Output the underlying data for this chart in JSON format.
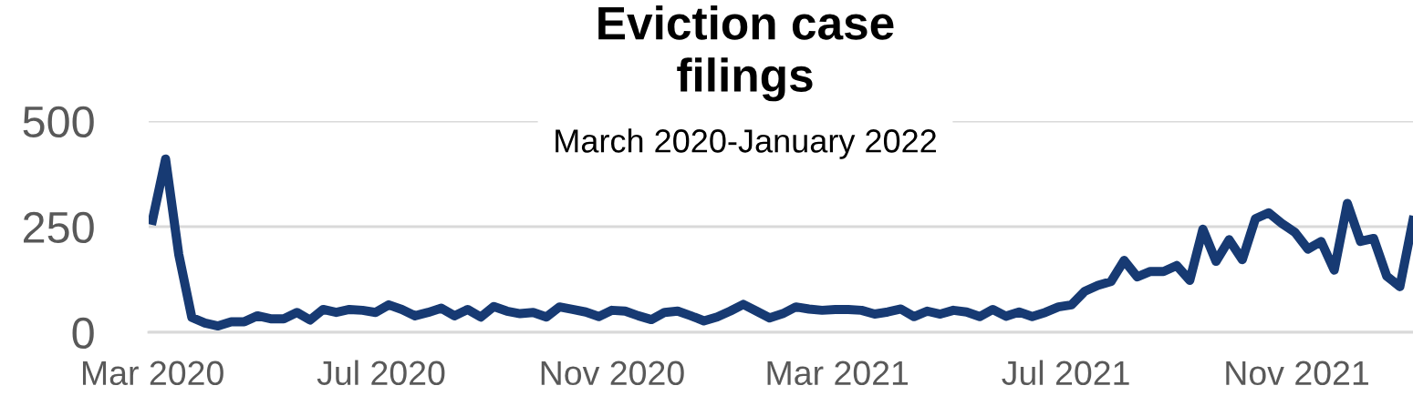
{
  "chart_data": {
    "type": "line",
    "title": "Eviction case\nfilings",
    "subtitle": "March 2020-January 2022",
    "x": [
      "2020-03-01",
      "2020-03-08",
      "2020-03-15",
      "2020-03-22",
      "2020-03-29",
      "2020-04-05",
      "2020-04-12",
      "2020-04-19",
      "2020-04-26",
      "2020-05-03",
      "2020-05-10",
      "2020-05-17",
      "2020-05-24",
      "2020-05-31",
      "2020-06-07",
      "2020-06-14",
      "2020-06-21",
      "2020-06-28",
      "2020-07-05",
      "2020-07-12",
      "2020-07-19",
      "2020-07-26",
      "2020-08-02",
      "2020-08-09",
      "2020-08-16",
      "2020-08-23",
      "2020-08-30",
      "2020-09-06",
      "2020-09-13",
      "2020-09-20",
      "2020-09-27",
      "2020-10-04",
      "2020-10-11",
      "2020-10-18",
      "2020-10-25",
      "2020-11-01",
      "2020-11-08",
      "2020-11-15",
      "2020-11-22",
      "2020-11-29",
      "2020-12-06",
      "2020-12-13",
      "2020-12-20",
      "2020-12-27",
      "2021-01-03",
      "2021-01-10",
      "2021-01-17",
      "2021-01-24",
      "2021-01-31",
      "2021-02-07",
      "2021-02-14",
      "2021-02-21",
      "2021-02-28",
      "2021-03-07",
      "2021-03-14",
      "2021-03-21",
      "2021-03-28",
      "2021-04-04",
      "2021-04-11",
      "2021-04-18",
      "2021-04-25",
      "2021-05-02",
      "2021-05-09",
      "2021-05-16",
      "2021-05-23",
      "2021-05-30",
      "2021-06-06",
      "2021-06-13",
      "2021-06-20",
      "2021-06-27",
      "2021-07-04",
      "2021-07-11",
      "2021-07-18",
      "2021-07-25",
      "2021-08-01",
      "2021-08-08",
      "2021-08-15",
      "2021-08-22",
      "2021-08-29",
      "2021-09-05",
      "2021-09-12",
      "2021-09-19",
      "2021-09-26",
      "2021-10-03",
      "2021-10-10",
      "2021-10-17",
      "2021-10-24",
      "2021-10-31",
      "2021-11-07",
      "2021-11-14",
      "2021-11-21",
      "2021-11-28",
      "2021-12-05",
      "2021-12-12",
      "2021-12-19",
      "2021-12-26",
      "2022-01-02"
    ],
    "series": [
      {
        "color": "#173a73",
        "values": [
          265,
          410,
          185,
          35,
          22,
          15,
          25,
          25,
          39,
          32,
          32,
          47,
          29,
          54,
          47,
          54,
          52,
          47,
          65,
          54,
          39,
          47,
          57,
          39,
          54,
          36,
          61,
          50,
          44,
          47,
          36,
          60,
          54,
          48,
          37,
          52,
          50,
          39,
          30,
          47,
          50,
          39,
          27,
          36,
          50,
          66,
          50,
          34,
          44,
          60,
          55,
          52,
          54,
          54,
          52,
          43,
          48,
          55,
          37,
          50,
          43,
          52,
          48,
          37,
          54,
          38,
          48,
          37,
          47,
          60,
          65,
          97,
          111,
          120,
          170,
          131,
          144,
          144,
          158,
          123,
          244,
          168,
          219,
          172,
          269,
          283,
          258,
          237,
          197,
          215,
          147,
          305,
          215,
          222,
          133,
          108,
          265
        ]
      }
    ],
    "xlim": [
      "2020-02-28",
      "2022-01-02"
    ],
    "xticks": [
      {
        "value": "2020-03-01",
        "label": "Mar 2020"
      },
      {
        "value": "2020-07-01",
        "label": "Jul 2020"
      },
      {
        "value": "2020-11-01",
        "label": "Nov 2020"
      },
      {
        "value": "2021-03-01",
        "label": "Mar 2021"
      },
      {
        "value": "2021-07-01",
        "label": "Jul 2021"
      },
      {
        "value": "2021-11-01",
        "label": "Nov 2021"
      }
    ],
    "ylim": [
      0,
      500
    ],
    "yticks": [
      0,
      250,
      500
    ],
    "grid": "y",
    "line_style": "solid"
  }
}
